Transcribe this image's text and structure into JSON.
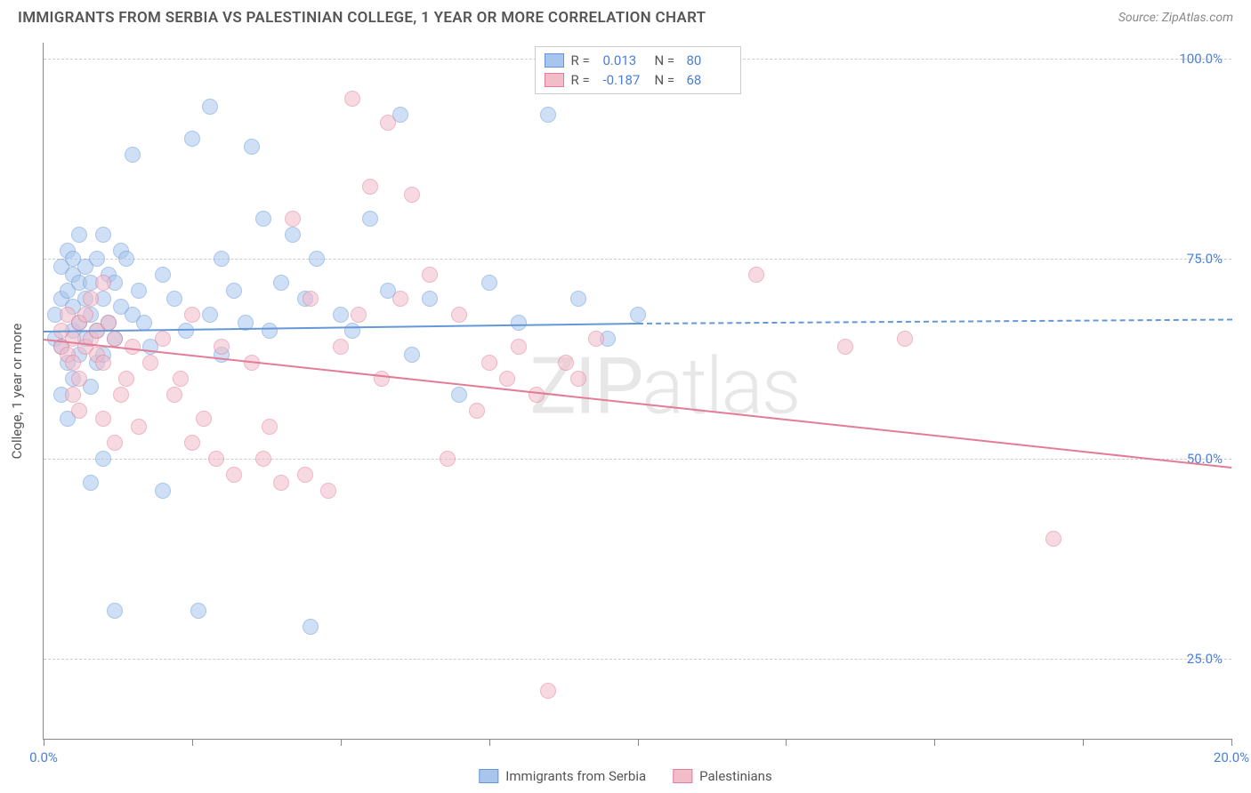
{
  "header": {
    "title": "IMMIGRANTS FROM SERBIA VS PALESTINIAN COLLEGE, 1 YEAR OR MORE CORRELATION CHART",
    "source": "Source: ZipAtlas.com"
  },
  "chart": {
    "type": "scatter",
    "ylabel": "College, 1 year or more",
    "xlim": [
      0,
      20
    ],
    "ylim": [
      15,
      102
    ],
    "xtick_positions": [
      0,
      2.5,
      5,
      7.5,
      10,
      12.5,
      15,
      17.5,
      20
    ],
    "xtick_labels": {
      "0": "0.0%",
      "20": "20.0%"
    },
    "ytick_positions": [
      25,
      50,
      75,
      100
    ],
    "ytick_labels": {
      "25": "25.0%",
      "50": "50.0%",
      "75": "75.0%",
      "100": "100.0%"
    },
    "grid_color": "#cccccc",
    "background_color": "#ffffff",
    "axis_color": "#888888",
    "label_color": "#4a7fd8",
    "title_color": "#555555",
    "series": [
      {
        "name": "Immigrants from Serbia",
        "fill": "#a8c6ed",
        "stroke": "#6698d8",
        "R": "0.013",
        "N": "80",
        "trend": {
          "x1": 0,
          "y1": 66,
          "x2": 10,
          "y2": 67,
          "dash_to_x": 20,
          "dash_to_y": 67.5
        },
        "points": [
          [
            0.2,
            65
          ],
          [
            0.2,
            68
          ],
          [
            0.3,
            70
          ],
          [
            0.3,
            64
          ],
          [
            0.3,
            74
          ],
          [
            0.4,
            62
          ],
          [
            0.4,
            76
          ],
          [
            0.4,
            71
          ],
          [
            0.5,
            66
          ],
          [
            0.5,
            69
          ],
          [
            0.5,
            73
          ],
          [
            0.5,
            60
          ],
          [
            0.5,
            75
          ],
          [
            0.6,
            72
          ],
          [
            0.6,
            67
          ],
          [
            0.6,
            63
          ],
          [
            0.6,
            78
          ],
          [
            0.7,
            65
          ],
          [
            0.7,
            70
          ],
          [
            0.7,
            74
          ],
          [
            0.8,
            59
          ],
          [
            0.8,
            68
          ],
          [
            0.8,
            72
          ],
          [
            0.8,
            47
          ],
          [
            0.9,
            66
          ],
          [
            0.9,
            62
          ],
          [
            0.9,
            75
          ],
          [
            1.0,
            70
          ],
          [
            1.0,
            78
          ],
          [
            1.0,
            63
          ],
          [
            1.0,
            50
          ],
          [
            1.1,
            67
          ],
          [
            1.1,
            73
          ],
          [
            1.2,
            72
          ],
          [
            1.2,
            65
          ],
          [
            1.2,
            31
          ],
          [
            1.3,
            69
          ],
          [
            1.3,
            76
          ],
          [
            1.4,
            75
          ],
          [
            1.5,
            68
          ],
          [
            1.5,
            88
          ],
          [
            1.6,
            71
          ],
          [
            1.7,
            67
          ],
          [
            1.8,
            64
          ],
          [
            2.0,
            73
          ],
          [
            2.0,
            46
          ],
          [
            2.2,
            70
          ],
          [
            2.4,
            66
          ],
          [
            2.5,
            90
          ],
          [
            2.6,
            31
          ],
          [
            2.8,
            68
          ],
          [
            2.8,
            94
          ],
          [
            3.0,
            75
          ],
          [
            3.0,
            63
          ],
          [
            3.2,
            71
          ],
          [
            3.4,
            67
          ],
          [
            3.5,
            89
          ],
          [
            3.7,
            80
          ],
          [
            3.8,
            66
          ],
          [
            4.0,
            72
          ],
          [
            4.2,
            78
          ],
          [
            4.4,
            70
          ],
          [
            4.5,
            29
          ],
          [
            4.6,
            75
          ],
          [
            5.0,
            68
          ],
          [
            5.2,
            66
          ],
          [
            5.5,
            80
          ],
          [
            5.8,
            71
          ],
          [
            6.0,
            93
          ],
          [
            6.2,
            63
          ],
          [
            6.5,
            70
          ],
          [
            7.0,
            58
          ],
          [
            7.5,
            72
          ],
          [
            8.0,
            67
          ],
          [
            8.5,
            93
          ],
          [
            9.0,
            70
          ],
          [
            9.5,
            65
          ],
          [
            10.0,
            68
          ],
          [
            0.3,
            58
          ],
          [
            0.4,
            55
          ]
        ]
      },
      {
        "name": "Palestinians",
        "fill": "#f2bcc9",
        "stroke": "#e27c98",
        "R": "-0.187",
        "N": "68",
        "trend": {
          "x1": 0,
          "y1": 65,
          "x2": 20,
          "y2": 49
        },
        "points": [
          [
            0.3,
            66
          ],
          [
            0.3,
            64
          ],
          [
            0.4,
            68
          ],
          [
            0.4,
            63
          ],
          [
            0.5,
            65
          ],
          [
            0.5,
            62
          ],
          [
            0.6,
            67
          ],
          [
            0.6,
            60
          ],
          [
            0.7,
            64
          ],
          [
            0.7,
            68
          ],
          [
            0.8,
            65
          ],
          [
            0.8,
            70
          ],
          [
            0.9,
            63
          ],
          [
            0.9,
            66
          ],
          [
            1.0,
            72
          ],
          [
            1.0,
            62
          ],
          [
            1.1,
            67
          ],
          [
            1.2,
            65
          ],
          [
            1.3,
            58
          ],
          [
            1.4,
            60
          ],
          [
            1.5,
            64
          ],
          [
            1.6,
            54
          ],
          [
            1.8,
            62
          ],
          [
            2.0,
            65
          ],
          [
            2.2,
            58
          ],
          [
            2.3,
            60
          ],
          [
            2.5,
            68
          ],
          [
            2.7,
            55
          ],
          [
            2.9,
            50
          ],
          [
            3.0,
            64
          ],
          [
            3.2,
            48
          ],
          [
            3.5,
            62
          ],
          [
            3.7,
            50
          ],
          [
            3.8,
            54
          ],
          [
            4.0,
            47
          ],
          [
            4.2,
            80
          ],
          [
            4.4,
            48
          ],
          [
            4.5,
            70
          ],
          [
            4.8,
            46
          ],
          [
            5.0,
            64
          ],
          [
            5.2,
            95
          ],
          [
            5.3,
            68
          ],
          [
            5.5,
            84
          ],
          [
            5.7,
            60
          ],
          [
            5.8,
            92
          ],
          [
            6.0,
            70
          ],
          [
            6.2,
            83
          ],
          [
            6.5,
            73
          ],
          [
            6.8,
            50
          ],
          [
            7.0,
            68
          ],
          [
            7.3,
            56
          ],
          [
            7.5,
            62
          ],
          [
            7.8,
            60
          ],
          [
            8.0,
            64
          ],
          [
            8.3,
            58
          ],
          [
            8.5,
            21
          ],
          [
            8.8,
            62
          ],
          [
            9.0,
            60
          ],
          [
            9.3,
            65
          ],
          [
            12.0,
            73
          ],
          [
            13.5,
            64
          ],
          [
            14.5,
            65
          ],
          [
            17.0,
            40
          ],
          [
            0.5,
            58
          ],
          [
            0.6,
            56
          ],
          [
            1.0,
            55
          ],
          [
            1.2,
            52
          ],
          [
            2.5,
            52
          ]
        ]
      }
    ],
    "legend_labels": {
      "R": "R =",
      "N": "N ="
    },
    "watermark": "ZIPatlas"
  }
}
